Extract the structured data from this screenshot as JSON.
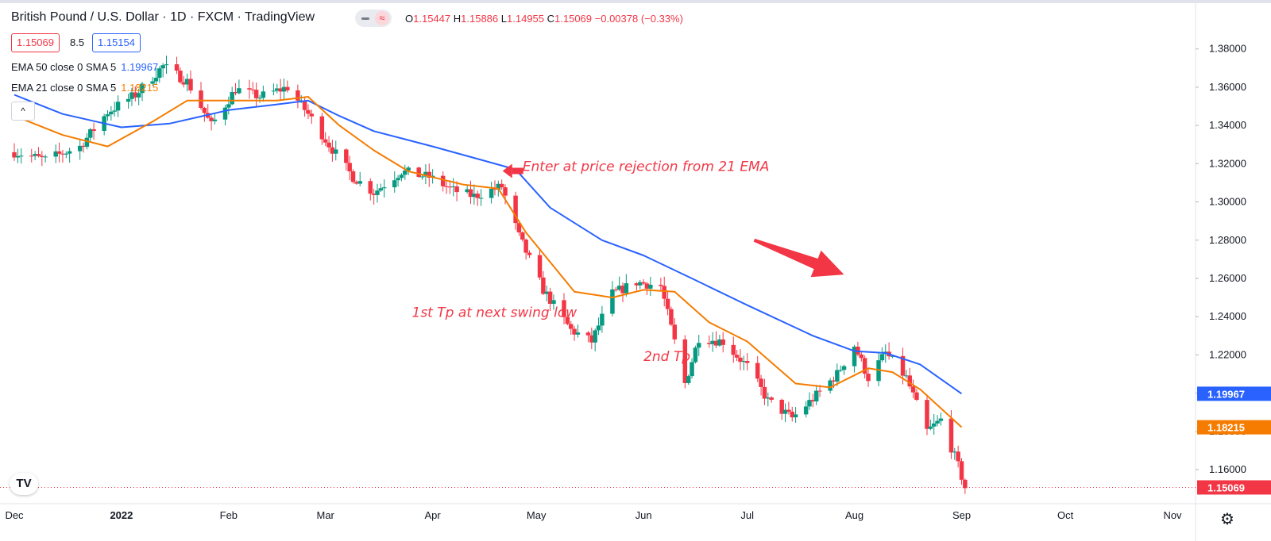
{
  "header": {
    "title": "British Pound / U.S. Dollar · 1D · FXCM · TradingView",
    "ohlc": {
      "o_label": "O",
      "o": "1.15447",
      "h_label": "H",
      "h": "1.15886",
      "l_label": "L",
      "l": "1.14955",
      "c_label": "C",
      "c": "1.15069",
      "change": "−0.00378 (−0.33%)"
    },
    "bid": "1.15069",
    "spread": "8.5",
    "ask": "1.15154",
    "ema50": {
      "label": "EMA 50 close 0 SMA 5",
      "value": "1.19967"
    },
    "ema21": {
      "label": "EMA 21 close 0 SMA 5",
      "value": "1.18215"
    },
    "collapse_icon": "chevron-up-icon",
    "logo": "TV",
    "settings_icon": "gear-icon"
  },
  "colors": {
    "up": "#089981",
    "down": "#f23645",
    "ema50": "#2962ff",
    "ema21": "#f57c00",
    "annotation": "#f23645"
  },
  "chart_data": {
    "type": "candlestick",
    "symbol": "GBPUSD",
    "timeframe": "1D",
    "y_ticks": [
      "1.16000",
      "1.18000",
      "1.20000",
      "1.22000",
      "1.24000",
      "1.26000",
      "1.28000",
      "1.30000",
      "1.32000",
      "1.34000",
      "1.36000",
      "1.38000"
    ],
    "ylim": [
      1.143,
      1.389
    ],
    "x_ticks": [
      {
        "label": "Dec",
        "date": "2021-12-01"
      },
      {
        "label": "2022",
        "date": "2022-01-01"
      },
      {
        "label": "Feb",
        "date": "2022-02-01"
      },
      {
        "label": "Mar",
        "date": "2022-03-01"
      },
      {
        "label": "Apr",
        "date": "2022-04-01"
      },
      {
        "label": "May",
        "date": "2022-05-01"
      },
      {
        "label": "Jun",
        "date": "2022-06-01"
      },
      {
        "label": "Jul",
        "date": "2022-07-01"
      },
      {
        "label": "Aug",
        "date": "2022-08-01"
      },
      {
        "label": "Sep",
        "date": "2022-09-01"
      },
      {
        "label": "Oct",
        "date": "2022-10-01"
      },
      {
        "label": "Nov",
        "date": "2022-11-01"
      }
    ],
    "close_series": {
      "x": [
        "2021-12-01",
        "2021-12-10",
        "2021-12-20",
        "2021-12-28",
        "2022-01-05",
        "2022-01-13",
        "2022-01-20",
        "2022-01-27",
        "2022-02-03",
        "2022-02-10",
        "2022-02-18",
        "2022-02-24",
        "2022-03-02",
        "2022-03-09",
        "2022-03-15",
        "2022-03-23",
        "2022-03-31",
        "2022-04-07",
        "2022-04-13",
        "2022-04-21",
        "2022-04-26",
        "2022-05-03",
        "2022-05-11",
        "2022-05-17",
        "2022-05-23",
        "2022-05-30",
        "2022-06-06",
        "2022-06-13",
        "2022-06-17",
        "2022-06-24",
        "2022-07-01",
        "2022-07-07",
        "2022-07-14",
        "2022-07-20",
        "2022-07-27",
        "2022-08-01",
        "2022-08-05",
        "2022-08-10",
        "2022-08-16",
        "2022-08-22",
        "2022-08-26",
        "2022-08-31",
        "2022-09-02"
      ],
      "y": [
        1.326,
        1.322,
        1.329,
        1.347,
        1.356,
        1.371,
        1.363,
        1.34,
        1.359,
        1.355,
        1.36,
        1.346,
        1.33,
        1.313,
        1.305,
        1.316,
        1.313,
        1.306,
        1.303,
        1.308,
        1.282,
        1.254,
        1.233,
        1.227,
        1.252,
        1.258,
        1.256,
        1.205,
        1.229,
        1.227,
        1.214,
        1.196,
        1.187,
        1.197,
        1.21,
        1.225,
        1.208,
        1.221,
        1.208,
        1.18,
        1.186,
        1.162,
        1.1507
      ]
    },
    "series": [
      {
        "name": "EMA 50 close 0 SMA 5",
        "color": "#2962ff",
        "x": [
          "2021-12-01",
          "2021-12-15",
          "2022-01-01",
          "2022-01-15",
          "2022-02-01",
          "2022-02-15",
          "2022-02-24",
          "2022-03-05",
          "2022-03-15",
          "2022-04-01",
          "2022-04-15",
          "2022-04-25",
          "2022-05-05",
          "2022-05-20",
          "2022-06-01",
          "2022-06-15",
          "2022-07-01",
          "2022-07-20",
          "2022-08-01",
          "2022-08-10",
          "2022-08-20",
          "2022-09-01"
        ],
        "y": [
          1.356,
          1.346,
          1.339,
          1.341,
          1.348,
          1.351,
          1.353,
          1.345,
          1.337,
          1.329,
          1.322,
          1.317,
          1.297,
          1.28,
          1.272,
          1.26,
          1.246,
          1.23,
          1.222,
          1.221,
          1.215,
          1.1997
        ]
      },
      {
        "name": "EMA 21 close 0 SMA 5",
        "color": "#f57c00",
        "x": [
          "2021-12-01",
          "2021-12-15",
          "2021-12-28",
          "2022-01-10",
          "2022-01-20",
          "2022-02-01",
          "2022-02-15",
          "2022-02-24",
          "2022-03-05",
          "2022-03-15",
          "2022-03-25",
          "2022-04-10",
          "2022-04-20",
          "2022-04-28",
          "2022-05-12",
          "2022-05-23",
          "2022-06-01",
          "2022-06-10",
          "2022-06-20",
          "2022-07-01",
          "2022-07-15",
          "2022-07-25",
          "2022-08-05",
          "2022-08-12",
          "2022-08-20",
          "2022-09-01"
        ],
        "y": [
          1.345,
          1.335,
          1.329,
          1.342,
          1.353,
          1.353,
          1.353,
          1.355,
          1.34,
          1.327,
          1.316,
          1.309,
          1.307,
          1.284,
          1.253,
          1.25,
          1.254,
          1.253,
          1.237,
          1.227,
          1.205,
          1.203,
          1.213,
          1.211,
          1.202,
          1.1822
        ]
      }
    ],
    "current_price": {
      "value": 1.15069,
      "label": "1.15069",
      "color": "#f23645"
    },
    "price_labels": [
      {
        "value": 1.19967,
        "label": "1.19967",
        "color": "#2962ff"
      },
      {
        "value": 1.18215,
        "label": "1.18215",
        "color": "#f57c00"
      }
    ],
    "annotations": [
      {
        "text": "Enter at price rejection from 21 EMA",
        "date": "2022-04-27",
        "price": 1.3162
      },
      {
        "text": "1st Tp at next swing low",
        "date": "2022-03-26",
        "price": 1.2398
      },
      {
        "text": "2nd Tp",
        "date": "2022-06-01",
        "price": 1.2168
      }
    ],
    "arrows": [
      {
        "kind": "entry-pointer",
        "date": "2022-04-24",
        "price": 1.3162
      },
      {
        "kind": "trend-down",
        "from_date": "2022-07-03",
        "from_price": 1.28,
        "to_date": "2022-07-29",
        "to_price": 1.262
      }
    ]
  }
}
